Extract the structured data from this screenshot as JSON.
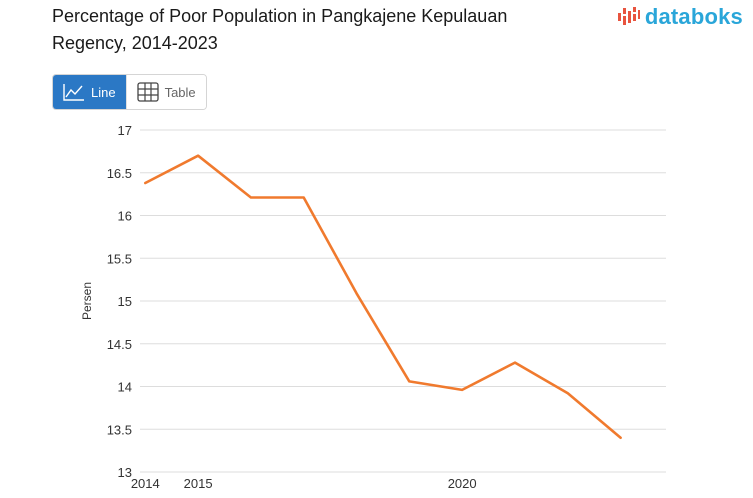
{
  "title": "Percentage of Poor Population in Pangkajene Kepulauan Regency, 2014-2023",
  "brand": {
    "name": "databoks",
    "accent": "#e8543f",
    "text_color": "#2aa6d9"
  },
  "view_toggle": {
    "line_label": "Line",
    "table_label": "Table",
    "selected": "Line"
  },
  "chart_data": {
    "type": "line",
    "ylabel": "Persen",
    "ylim": [
      13,
      17
    ],
    "yticks": [
      13,
      13.5,
      14,
      14.5,
      15,
      15.5,
      16,
      16.5,
      17
    ],
    "xticks": [
      "2014",
      "2015",
      "2020"
    ],
    "grid": true,
    "series": [
      {
        "color": "#f07a2e",
        "x": [
          2014,
          2015,
          2016,
          2017,
          2018,
          2019,
          2020,
          2021,
          2022,
          2023
        ],
        "values": [
          16.38,
          16.7,
          16.21,
          16.21,
          15.09,
          14.06,
          13.96,
          14.28,
          13.92,
          13.4
        ]
      }
    ]
  }
}
